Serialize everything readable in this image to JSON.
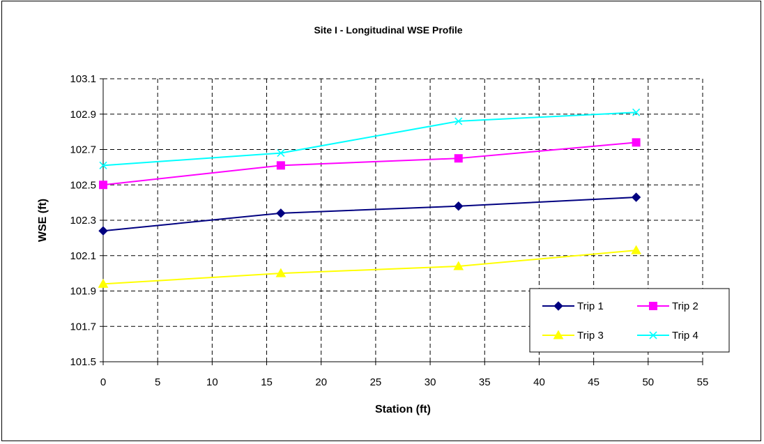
{
  "chart_data": {
    "type": "line",
    "title": "Site I - Longitudinal WSE Profile",
    "xlabel": "Station (ft)",
    "ylabel": "WSE (ft)",
    "xlim": [
      0,
      55
    ],
    "ylim": [
      101.5,
      103.1
    ],
    "xticks": [
      0,
      5,
      10,
      15,
      20,
      25,
      30,
      35,
      40,
      45,
      50,
      55
    ],
    "yticks": [
      "101.5",
      "101.7",
      "101.9",
      "102.1",
      "102.3",
      "102.5",
      "102.7",
      "102.9",
      "103.1"
    ],
    "grid": true,
    "legend_position": "bottom-right",
    "series": [
      {
        "name": "Trip 1",
        "color": "#000080",
        "marker": "diamond",
        "x": [
          0,
          16.3,
          32.6,
          48.9
        ],
        "y": [
          102.24,
          102.34,
          102.38,
          102.43
        ]
      },
      {
        "name": "Trip 2",
        "color": "#FF00FF",
        "marker": "square",
        "x": [
          0,
          16.3,
          32.6,
          48.9
        ],
        "y": [
          102.5,
          102.61,
          102.65,
          102.74
        ]
      },
      {
        "name": "Trip 3",
        "color": "#FFFF00",
        "marker": "triangle",
        "x": [
          0,
          16.3,
          32.6,
          48.9
        ],
        "y": [
          101.94,
          102.0,
          102.04,
          102.13
        ]
      },
      {
        "name": "Trip 4",
        "color": "#00FFFF",
        "marker": "x",
        "x": [
          0,
          16.3,
          32.6,
          48.9
        ],
        "y": [
          102.61,
          102.68,
          102.86,
          102.91
        ]
      }
    ]
  }
}
